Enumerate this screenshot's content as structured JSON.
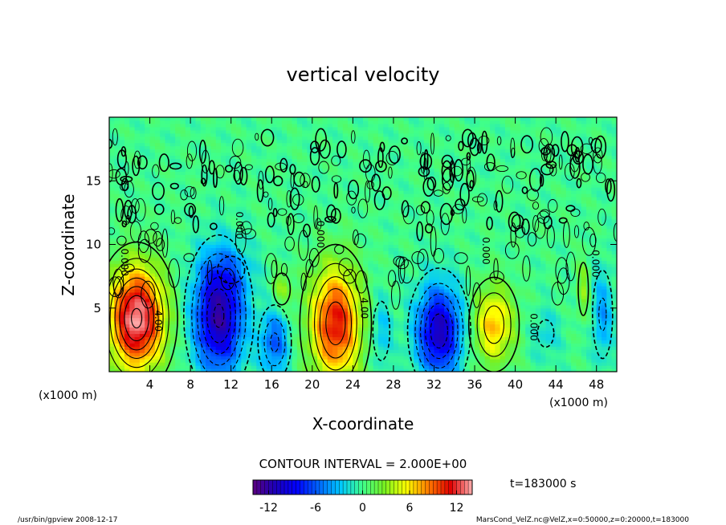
{
  "chart_data": {
    "type": "heatmap",
    "title": "vertical velocity",
    "xlabel": "X-coordinate",
    "ylabel": "Z-coordinate",
    "x_unit_left": "(x1000 m)",
    "x_unit_right": "(x1000 m)",
    "xlim": [
      0,
      50
    ],
    "ylim": [
      0,
      20
    ],
    "xticks": [
      4,
      8,
      12,
      16,
      20,
      24,
      28,
      32,
      36,
      40,
      44,
      48
    ],
    "yticks": [
      5,
      10,
      15
    ],
    "contour_interval_text": "CONTOUR INTERVAL = 2.000E+00",
    "time_label": "t=183000 s",
    "colorbar": {
      "vmin": -14,
      "vmax": 14,
      "ticks": [
        -12,
        -6,
        0,
        6,
        12
      ],
      "colors": [
        "#5a007f",
        "#1d00b8",
        "#0000ff",
        "#0066ff",
        "#00c8ff",
        "#40ff8a",
        "#78f020",
        "#ffff00",
        "#ff7a00",
        "#e00000",
        "#ffb0b0"
      ]
    },
    "contour_labels": [
      {
        "text": "4.00",
        "x": 4.5,
        "z": 4.0
      },
      {
        "text": "4.00",
        "x": 24.8,
        "z": 5.0
      },
      {
        "text": "0.000",
        "x": 1.2,
        "z": 8.6
      },
      {
        "text": "0.000",
        "x": 12.5,
        "z": 11.5
      },
      {
        "text": "0.000",
        "x": 20.5,
        "z": 10.8
      },
      {
        "text": "0.000",
        "x": 36.8,
        "z": 9.5
      },
      {
        "text": "0.000",
        "x": 41.5,
        "z": 3.5
      },
      {
        "text": "0.000",
        "x": 47.6,
        "z": 8.5
      }
    ],
    "cells": [
      {
        "x": 2.7,
        "z": 4.2,
        "sx": 2.7,
        "sz": 4.0,
        "w": 14
      },
      {
        "x": 10.8,
        "z": 4.4,
        "sx": 2.4,
        "sz": 4.4,
        "w": -12
      },
      {
        "x": 16.3,
        "z": 2.3,
        "sx": 1.4,
        "sz": 2.5,
        "w": -6
      },
      {
        "x": 22.3,
        "z": 3.8,
        "sx": 2.5,
        "sz": 4.4,
        "w": 11
      },
      {
        "x": 26.8,
        "z": 3.2,
        "sx": 1.0,
        "sz": 2.8,
        "w": -3
      },
      {
        "x": 32.5,
        "z": 3.2,
        "sx": 2.2,
        "sz": 3.5,
        "w": -11
      },
      {
        "x": 37.9,
        "z": 3.7,
        "sx": 2.0,
        "sz": 3.0,
        "w": 7
      },
      {
        "x": 48.6,
        "z": 4.5,
        "sx": 1.0,
        "sz": 3.5,
        "w": -4
      },
      {
        "x": 46.7,
        "z": 6.5,
        "sx": 0.6,
        "sz": 2.5,
        "w": 3
      },
      {
        "x": 17.0,
        "z": 6.5,
        "sx": 1.0,
        "sz": 1.5,
        "w": 3
      },
      {
        "x": 12.0,
        "z": 8.0,
        "sx": 2.5,
        "sz": 2.0,
        "w": -2
      },
      {
        "x": 43.0,
        "z": 3.0,
        "sx": 1.5,
        "sz": 2.0,
        "w": -2
      }
    ]
  },
  "footer": {
    "left": "/usr/bin/gpview   2008-12-17",
    "right": "MarsCond_VelZ.nc@VelZ,x=0:50000,z=0:20000,t=183000"
  }
}
